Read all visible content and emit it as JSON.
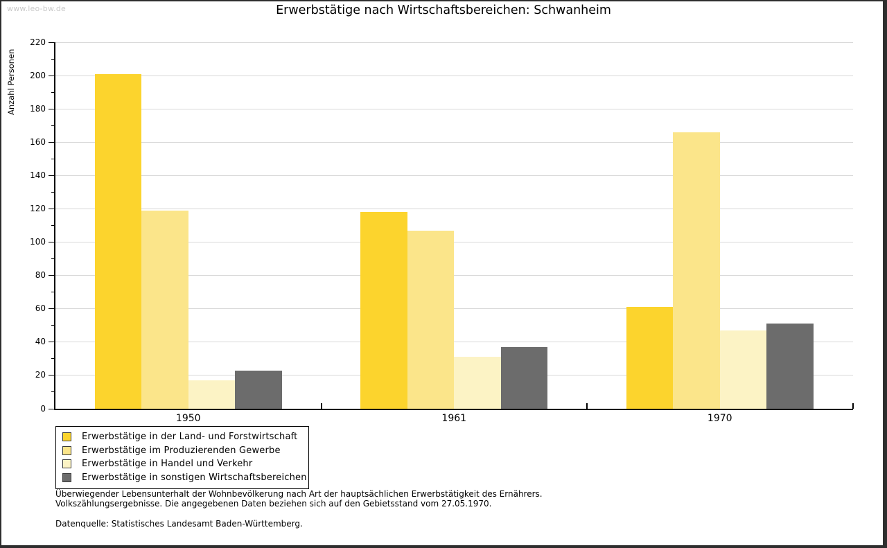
{
  "page": {
    "watermark": "www.leo-bw.de"
  },
  "chart_data": {
    "type": "bar",
    "title": "Erwerbstätige nach Wirtschaftsbereichen: Schwanheim",
    "xlabel": "",
    "ylabel": "Anzahl Personen",
    "categories": [
      "1950",
      "1961",
      "1970"
    ],
    "series": [
      {
        "name": "Erwerbstätige in der Land- und Forstwirtschaft",
        "color": "#FCD42D",
        "values": [
          201,
          118,
          61
        ]
      },
      {
        "name": "Erwerbstätige im Produzierenden Gewerbe",
        "color": "#FBE58A",
        "values": [
          119,
          107,
          166
        ]
      },
      {
        "name": "Erwerbstätige in Handel und Verkehr",
        "color": "#FCF3C5",
        "values": [
          17,
          31,
          47
        ]
      },
      {
        "name": "Erwerbstätige in sonstigen Wirtschaftsbereichen",
        "color": "#6C6C6C",
        "values": [
          23,
          37,
          51
        ]
      }
    ],
    "ylim": [
      0,
      220
    ],
    "ytick_step": 20,
    "ytick_minor_step": 10,
    "grid": true,
    "legend_position": "bottom-left",
    "colors": {
      "gridline": "#d8d8d8",
      "axis": "#000000",
      "background": "#ffffff"
    }
  },
  "footer": {
    "note_line1": "Überwiegender Lebensunterhalt der Wohnbevölkerung nach Art der hauptsächlichen Erwerbstätigkeit des Ernährers.",
    "note_line2": "Volkszählungsergebnisse. Die angegebenen Daten beziehen sich auf den Gebietsstand vom 27.05.1970.",
    "source": "Datenquelle: Statistisches Landesamt Baden-Württemberg."
  }
}
